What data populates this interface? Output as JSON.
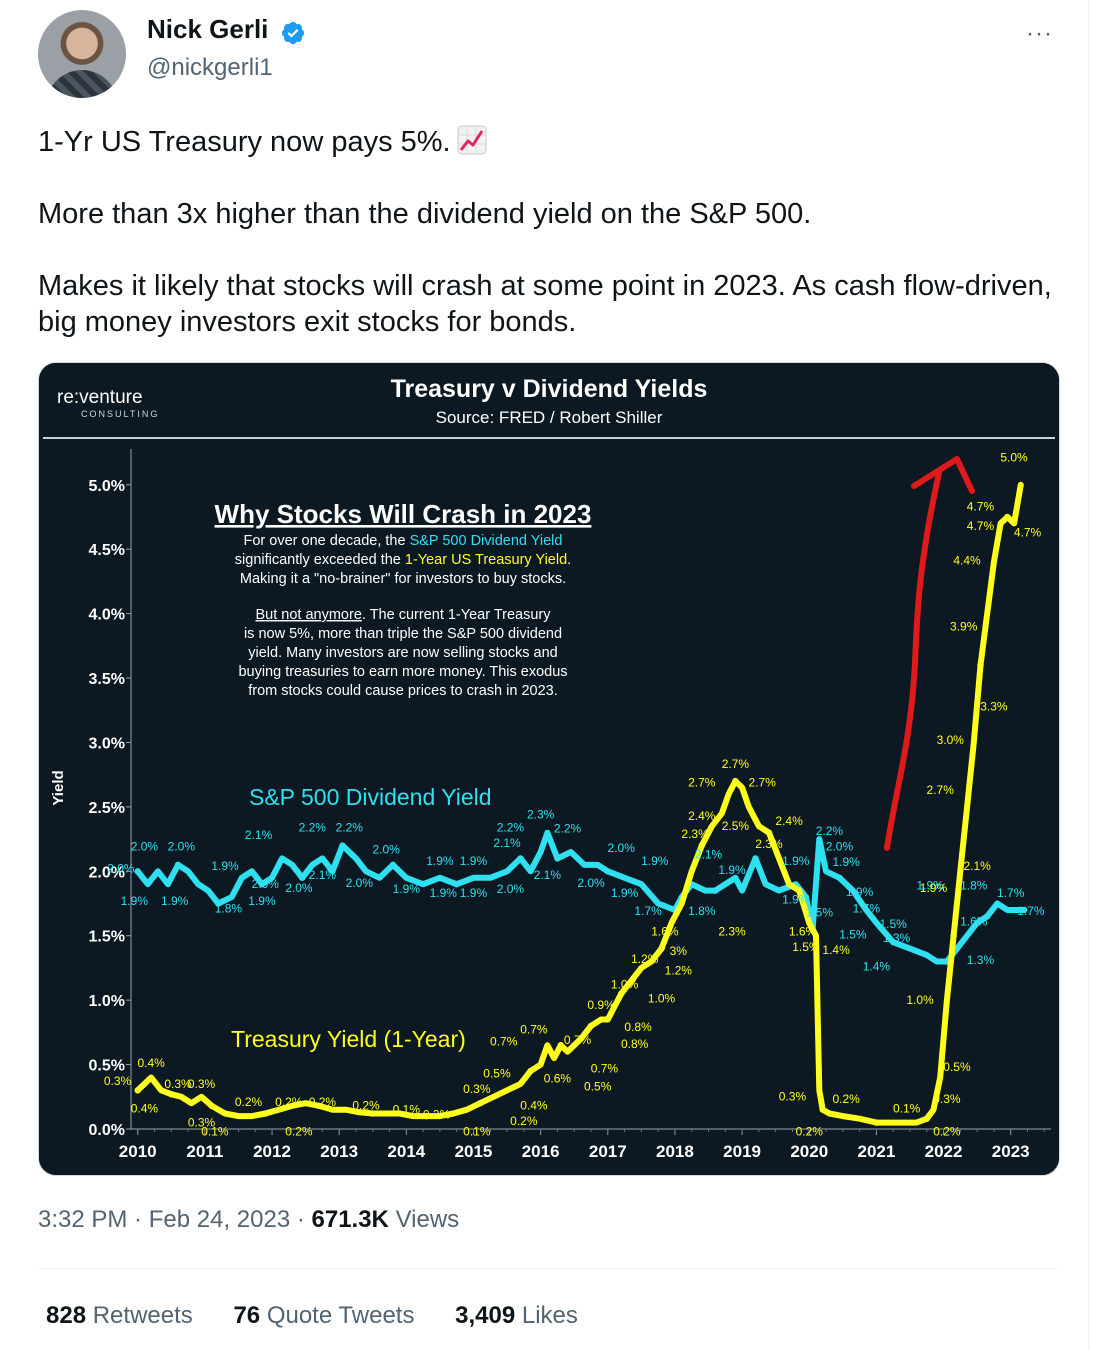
{
  "author": {
    "name": "Nick Gerli",
    "handle": "@nickgerli1"
  },
  "more_label": "···",
  "tweet": {
    "paragraphs": [
      "1-Yr US Treasury now pays 5%.",
      "More than 3x higher than the dividend yield on the S&P 500.",
      "Makes it likely that stocks will crash at some point in 2023. As cash flow-driven, big money investors exit stocks for bonds."
    ],
    "emoji_icon": "chart-increasing-icon"
  },
  "meta": {
    "time": "3:32 PM",
    "date": "Feb 24, 2023",
    "views_count": "671.3K",
    "views_label": "Views"
  },
  "stats": {
    "retweets_count": "828",
    "retweets_label": "Retweets",
    "quotes_count": "76",
    "quotes_label": "Quote Tweets",
    "likes_count": "3,409",
    "likes_label": "Likes"
  },
  "colors": {
    "sp": "#2ee0f0",
    "treasury": "#ffff1e",
    "arrow": "#e0191a",
    "panel": "#0c1922"
  },
  "chart_data": {
    "type": "line",
    "title": "Treasury v Dividend Yields",
    "subtitle": "Source: FRED / Robert Shiller",
    "logo_main": "re:venture",
    "logo_sub": "CONSULTING",
    "ylabel": "Yield",
    "ylim": [
      0,
      5.2
    ],
    "yticks": [
      "0.0%",
      "0.5%",
      "1.0%",
      "1.5%",
      "2.0%",
      "2.5%",
      "3.0%",
      "3.5%",
      "4.0%",
      "4.5%",
      "5.0%"
    ],
    "xticks": [
      "2010",
      "2011",
      "2012",
      "2013",
      "2014",
      "2015",
      "2016",
      "2017",
      "2018",
      "2019",
      "2020",
      "2021",
      "2022",
      "2023"
    ],
    "xlim": [
      2009.9,
      2023.6
    ],
    "annotation": {
      "heading": "Why Stocks Will Crash in 2023",
      "p1_a": "For over one decade, the ",
      "p1_sp": "S&P 500 Dividend Yield",
      "p1_b": "significantly exceeded the ",
      "p1_ty": "1-Year US Treasury Yield",
      "p1_c": ".",
      "p1_d": "Making it a \"no-brainer\" for investors to buy stocks.",
      "p2_u": "But not anymore",
      "p2_a": ". The current 1-Year Treasury",
      "p2_lines": [
        "is now 5%, more than triple the S&P 500 dividend",
        "yield. Many investors are now selling stocks and",
        "buying treasuries to earn more money. This exodus",
        "from stocks could cause prices to crash in 2023."
      ]
    },
    "series": [
      {
        "name": "S&P 500 Dividend Yield",
        "x": [
          2010.0,
          2010.15,
          2010.3,
          2010.45,
          2010.6,
          2010.75,
          2010.9,
          2011.05,
          2011.2,
          2011.4,
          2011.55,
          2011.7,
          2011.85,
          2012.0,
          2012.15,
          2012.3,
          2012.45,
          2012.6,
          2012.75,
          2012.9,
          2013.05,
          2013.25,
          2013.4,
          2013.6,
          2013.8,
          2014.0,
          2014.25,
          2014.5,
          2014.75,
          2015.0,
          2015.25,
          2015.5,
          2015.7,
          2015.85,
          2016.0,
          2016.1,
          2016.25,
          2016.45,
          2016.65,
          2016.85,
          2017.0,
          2017.25,
          2017.5,
          2017.75,
          2018.0,
          2018.1,
          2018.25,
          2018.45,
          2018.6,
          2018.75,
          2018.9,
          2019.0,
          2019.2,
          2019.35,
          2019.55,
          2019.8,
          2019.95,
          2020.05,
          2020.15,
          2020.25,
          2020.45,
          2020.65,
          2020.85,
          2021.0,
          2021.25,
          2021.5,
          2021.75,
          2021.9,
          2022.05,
          2022.2,
          2022.35,
          2022.5,
          2022.65,
          2022.8,
          2022.95,
          2023.1,
          2023.2
        ],
        "values": [
          2.0,
          1.9,
          2.0,
          1.9,
          2.05,
          2.0,
          1.9,
          1.85,
          1.75,
          1.8,
          1.95,
          2.0,
          1.9,
          1.95,
          2.1,
          2.05,
          1.95,
          2.05,
          2.1,
          2.0,
          2.2,
          2.1,
          2.0,
          1.95,
          2.05,
          1.95,
          1.9,
          1.95,
          1.9,
          1.95,
          1.95,
          2.0,
          2.1,
          2.0,
          2.15,
          2.3,
          2.1,
          2.15,
          2.05,
          2.05,
          2.0,
          1.95,
          1.9,
          1.75,
          1.7,
          1.8,
          1.9,
          1.85,
          1.85,
          1.9,
          1.95,
          1.85,
          2.1,
          1.9,
          1.85,
          1.9,
          1.8,
          1.55,
          2.25,
          2.0,
          1.95,
          1.85,
          1.7,
          1.6,
          1.45,
          1.4,
          1.35,
          1.3,
          1.3,
          1.4,
          1.5,
          1.6,
          1.65,
          1.75,
          1.7,
          1.7,
          1.7
        ]
      },
      {
        "name": "Treasury Yield (1-Year)",
        "x": [
          2010.0,
          2010.1,
          2010.2,
          2010.35,
          2010.5,
          2010.65,
          2010.8,
          2010.95,
          2011.1,
          2011.3,
          2011.5,
          2011.7,
          2011.9,
          2012.1,
          2012.3,
          2012.5,
          2012.7,
          2012.9,
          2013.1,
          2013.3,
          2013.5,
          2013.7,
          2013.9,
          2014.1,
          2014.3,
          2014.5,
          2014.7,
          2014.9,
          2015.1,
          2015.3,
          2015.5,
          2015.7,
          2015.85,
          2016.0,
          2016.1,
          2016.2,
          2016.3,
          2016.4,
          2016.5,
          2016.6,
          2016.75,
          2016.9,
          2017.0,
          2017.1,
          2017.2,
          2017.35,
          2017.5,
          2017.65,
          2017.8,
          2017.95,
          2018.1,
          2018.25,
          2018.4,
          2018.55,
          2018.7,
          2018.8,
          2018.9,
          2019.0,
          2019.1,
          2019.25,
          2019.4,
          2019.55,
          2019.7,
          2019.85,
          2020.0,
          2020.05,
          2020.1,
          2020.15,
          2020.2,
          2020.3,
          2020.5,
          2020.75,
          2021.0,
          2021.25,
          2021.45,
          2021.6,
          2021.75,
          2021.85,
          2021.95,
          2022.05,
          2022.15,
          2022.25,
          2022.35,
          2022.45,
          2022.55,
          2022.65,
          2022.75,
          2022.85,
          2022.95,
          2023.05,
          2023.15
        ],
        "values": [
          0.3,
          0.35,
          0.4,
          0.3,
          0.27,
          0.25,
          0.2,
          0.25,
          0.18,
          0.12,
          0.1,
          0.1,
          0.12,
          0.15,
          0.18,
          0.2,
          0.18,
          0.15,
          0.15,
          0.13,
          0.12,
          0.12,
          0.12,
          0.1,
          0.1,
          0.1,
          0.12,
          0.15,
          0.2,
          0.25,
          0.3,
          0.35,
          0.45,
          0.5,
          0.65,
          0.55,
          0.65,
          0.6,
          0.65,
          0.7,
          0.8,
          0.85,
          0.85,
          0.95,
          1.05,
          1.15,
          1.25,
          1.3,
          1.4,
          1.6,
          1.75,
          2.0,
          2.2,
          2.35,
          2.45,
          2.6,
          2.7,
          2.65,
          2.5,
          2.35,
          2.3,
          2.1,
          1.9,
          1.85,
          1.6,
          1.55,
          1.5,
          0.3,
          0.15,
          0.12,
          0.1,
          0.08,
          0.05,
          0.05,
          0.05,
          0.05,
          0.08,
          0.15,
          0.4,
          1.0,
          1.5,
          2.0,
          2.5,
          3.0,
          3.6,
          4.0,
          4.4,
          4.7,
          4.75,
          4.7,
          5.0
        ]
      }
    ],
    "sp_labels": [
      {
        "x": 2009.75,
        "y": 1.99,
        "t": "2.0%"
      },
      {
        "x": 2010.1,
        "y": 2.16,
        "t": "2.0%"
      },
      {
        "x": 2010.65,
        "y": 2.16,
        "t": "2.0%"
      },
      {
        "x": 2009.95,
        "y": 1.74,
        "t": "1.9%"
      },
      {
        "x": 2010.55,
        "y": 1.74,
        "t": "1.9%"
      },
      {
        "x": 2011.3,
        "y": 2.01,
        "t": "1.9%"
      },
      {
        "x": 2011.35,
        "y": 1.68,
        "t": "1.8%"
      },
      {
        "x": 2011.8,
        "y": 2.25,
        "t": "2.1%"
      },
      {
        "x": 2011.9,
        "y": 1.87,
        "t": "2.0%"
      },
      {
        "x": 2011.85,
        "y": 1.74,
        "t": "1.9%"
      },
      {
        "x": 2012.4,
        "y": 1.84,
        "t": "2.0%"
      },
      {
        "x": 2012.6,
        "y": 2.31,
        "t": "2.2%"
      },
      {
        "x": 2013.15,
        "y": 2.31,
        "t": "2.2%"
      },
      {
        "x": 2012.75,
        "y": 1.94,
        "t": "2.1%"
      },
      {
        "x": 2013.3,
        "y": 1.88,
        "t": "2.0%"
      },
      {
        "x": 2013.7,
        "y": 2.14,
        "t": "2.0%"
      },
      {
        "x": 2014.0,
        "y": 1.83,
        "t": "1.9%"
      },
      {
        "x": 2014.5,
        "y": 2.05,
        "t": "1.9%"
      },
      {
        "x": 2014.55,
        "y": 1.8,
        "t": "1.9%"
      },
      {
        "x": 2015.0,
        "y": 2.05,
        "t": "1.9%"
      },
      {
        "x": 2015.0,
        "y": 1.8,
        "t": "1.9%"
      },
      {
        "x": 2015.55,
        "y": 2.31,
        "t": "2.2%"
      },
      {
        "x": 2015.5,
        "y": 2.19,
        "t": "2.1%"
      },
      {
        "x": 2015.55,
        "y": 1.83,
        "t": "2.0%"
      },
      {
        "x": 2016.0,
        "y": 2.41,
        "t": "2.3%"
      },
      {
        "x": 2016.4,
        "y": 2.3,
        "t": "2.2%"
      },
      {
        "x": 2016.1,
        "y": 1.94,
        "t": "2.1%"
      },
      {
        "x": 2016.75,
        "y": 1.88,
        "t": "2.0%"
      },
      {
        "x": 2017.2,
        "y": 2.15,
        "t": "2.0%"
      },
      {
        "x": 2017.25,
        "y": 1.8,
        "t": "1.9%"
      },
      {
        "x": 2017.7,
        "y": 2.05,
        "t": "1.9%"
      },
      {
        "x": 2017.6,
        "y": 1.66,
        "t": "1.7%"
      },
      {
        "x": 2018.4,
        "y": 1.66,
        "t": "1.8%"
      },
      {
        "x": 2018.5,
        "y": 2.1,
        "t": "2.1%"
      },
      {
        "x": 2018.85,
        "y": 1.98,
        "t": "1.9%"
      },
      {
        "x": 2019.8,
        "y": 2.05,
        "t": "1.9%"
      },
      {
        "x": 2019.8,
        "y": 1.75,
        "t": "1.9%"
      },
      {
        "x": 2020.3,
        "y": 2.28,
        "t": "2.2%"
      },
      {
        "x": 2020.45,
        "y": 2.16,
        "t": "2.0%"
      },
      {
        "x": 2020.55,
        "y": 2.04,
        "t": "1.9%"
      },
      {
        "x": 2020.75,
        "y": 1.81,
        "t": "1.9%"
      },
      {
        "x": 2020.85,
        "y": 1.68,
        "t": "1.7%"
      },
      {
        "x": 2021.25,
        "y": 1.56,
        "t": "1.5%"
      },
      {
        "x": 2021.3,
        "y": 1.45,
        "t": "1.3%"
      },
      {
        "x": 2021.0,
        "y": 1.23,
        "t": "1.4%"
      },
      {
        "x": 2021.8,
        "y": 1.86,
        "t": "1.9%"
      },
      {
        "x": 2022.45,
        "y": 1.86,
        "t": "1.8%"
      },
      {
        "x": 2023.0,
        "y": 1.8,
        "t": "1.7%"
      },
      {
        "x": 2022.45,
        "y": 1.58,
        "t": "1.6%"
      },
      {
        "x": 2022.55,
        "y": 1.28,
        "t": "1.3%"
      },
      {
        "x": 2023.3,
        "y": 1.66,
        "t": "1.7%"
      },
      {
        "x": 2020.65,
        "y": 1.48,
        "t": "1.5%"
      },
      {
        "x": 2020.15,
        "y": 1.65,
        "t": "1.5%"
      }
    ],
    "ty_labels": [
      {
        "x": 2009.7,
        "y": 0.34,
        "t": "0.3%"
      },
      {
        "x": 2010.2,
        "y": 0.48,
        "t": "0.4%"
      },
      {
        "x": 2010.6,
        "y": 0.32,
        "t": "0.3%"
      },
      {
        "x": 2010.1,
        "y": 0.13,
        "t": "0.4%"
      },
      {
        "x": 2010.95,
        "y": 0.32,
        "t": "0.3%"
      },
      {
        "x": 2010.95,
        "y": 0.02,
        "t": "0.3%"
      },
      {
        "x": 2011.15,
        "y": -0.05,
        "t": "0.1%"
      },
      {
        "x": 2011.65,
        "y": 0.18,
        "t": "0.2%"
      },
      {
        "x": 2012.25,
        "y": 0.18,
        "t": "0.2%"
      },
      {
        "x": 2012.75,
        "y": 0.18,
        "t": "0.2%"
      },
      {
        "x": 2012.4,
        "y": -0.05,
        "t": "0.2%"
      },
      {
        "x": 2013.4,
        "y": 0.15,
        "t": "0.2%"
      },
      {
        "x": 2014.0,
        "y": 0.12,
        "t": "0.1%"
      },
      {
        "x": 2014.45,
        "y": 0.08,
        "t": "0.2%"
      },
      {
        "x": 2015.05,
        "y": 0.28,
        "t": "0.3%"
      },
      {
        "x": 2015.05,
        "y": -0.05,
        "t": "0.1%"
      },
      {
        "x": 2015.35,
        "y": 0.4,
        "t": "0.5%"
      },
      {
        "x": 2015.45,
        "y": 0.65,
        "t": "0.7%"
      },
      {
        "x": 2015.9,
        "y": 0.74,
        "t": "0.7%"
      },
      {
        "x": 2015.9,
        "y": 0.15,
        "t": "0.4%"
      },
      {
        "x": 2015.75,
        "y": 0.03,
        "t": "0.2%"
      },
      {
        "x": 2016.25,
        "y": 0.36,
        "t": "0.6%"
      },
      {
        "x": 2016.55,
        "y": 0.66,
        "t": "0.7%"
      },
      {
        "x": 2016.85,
        "y": 0.3,
        "t": "0.5%"
      },
      {
        "x": 2016.95,
        "y": 0.44,
        "t": "0.7%"
      },
      {
        "x": 2017.45,
        "y": 0.76,
        "t": "0.8%"
      },
      {
        "x": 2017.4,
        "y": 0.63,
        "t": "0.8%"
      },
      {
        "x": 2016.9,
        "y": 0.93,
        "t": "0.9%"
      },
      {
        "x": 2017.25,
        "y": 1.09,
        "t": "1.0%"
      },
      {
        "x": 2017.55,
        "y": 1.29,
        "t": "1.2%"
      },
      {
        "x": 2017.8,
        "y": 0.98,
        "t": "1.0%"
      },
      {
        "x": 2018.05,
        "y": 1.2,
        "t": "1.2%"
      },
      {
        "x": 2017.85,
        "y": 1.5,
        "t": "1.6%"
      },
      {
        "x": 2018.05,
        "y": 1.35,
        "t": "3%"
      },
      {
        "x": 2018.3,
        "y": 2.26,
        "t": "2.3%"
      },
      {
        "x": 2018.4,
        "y": 2.4,
        "t": "2.4%"
      },
      {
        "x": 2018.4,
        "y": 2.66,
        "t": "2.7%"
      },
      {
        "x": 2018.9,
        "y": 2.8,
        "t": "2.7%"
      },
      {
        "x": 2019.3,
        "y": 2.66,
        "t": "2.7%"
      },
      {
        "x": 2018.9,
        "y": 2.32,
        "t": "2.5%"
      },
      {
        "x": 2019.4,
        "y": 2.18,
        "t": "2.3%"
      },
      {
        "x": 2019.7,
        "y": 2.36,
        "t": "2.4%"
      },
      {
        "x": 2018.85,
        "y": 1.5,
        "t": "2.3%"
      },
      {
        "x": 2019.9,
        "y": 1.5,
        "t": "1.6%"
      },
      {
        "x": 2019.95,
        "y": 1.38,
        "t": "1.5%"
      },
      {
        "x": 2020.4,
        "y": 1.36,
        "t": "1.4%"
      },
      {
        "x": 2019.75,
        "y": 0.22,
        "t": "0.3%"
      },
      {
        "x": 2020.0,
        "y": -0.05,
        "t": "0.2%"
      },
      {
        "x": 2020.55,
        "y": 0.2,
        "t": "0.2%"
      },
      {
        "x": 2021.45,
        "y": 0.13,
        "t": "0.1%"
      },
      {
        "x": 2022.05,
        "y": 0.2,
        "t": "0.3%"
      },
      {
        "x": 2022.05,
        "y": -0.05,
        "t": "0.2%"
      },
      {
        "x": 2022.2,
        "y": 0.45,
        "t": "0.5%"
      },
      {
        "x": 2021.65,
        "y": 0.97,
        "t": "1.0%"
      },
      {
        "x": 2021.85,
        "y": 1.84,
        "t": "1.9%"
      },
      {
        "x": 2022.5,
        "y": 2.01,
        "t": "2.1%"
      },
      {
        "x": 2021.95,
        "y": 2.6,
        "t": "2.7%"
      },
      {
        "x": 2022.1,
        "y": 2.99,
        "t": "3.0%"
      },
      {
        "x": 2022.75,
        "y": 3.25,
        "t": "3.3%"
      },
      {
        "x": 2022.3,
        "y": 3.87,
        "t": "3.9%"
      },
      {
        "x": 2022.35,
        "y": 4.38,
        "t": "4.4%"
      },
      {
        "x": 2022.55,
        "y": 4.65,
        "t": "4.7%"
      },
      {
        "x": 2022.55,
        "y": 4.8,
        "t": "4.7%"
      },
      {
        "x": 2023.25,
        "y": 4.6,
        "t": "4.7%"
      },
      {
        "x": 2023.05,
        "y": 5.18,
        "t": "5.0%"
      }
    ]
  }
}
